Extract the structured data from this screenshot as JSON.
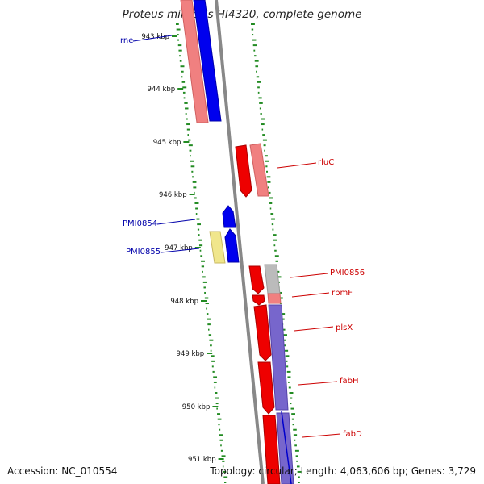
{
  "title": "Proteus mirabilis HI4320, complete genome",
  "footer": {
    "accession": "Accession: NC_010554",
    "topology": "Topology: circular; Length: 4,063,606 bp; Genes: 3,729"
  },
  "colors": {
    "forward_cds": "#ee0000",
    "forward_cds_light": "#f08080",
    "reverse_cds": "#0000ee",
    "reverse_cds_light": "#7766cc",
    "rna": "#f0e68c",
    "other": "#bbbbbb",
    "backbone": "#888888",
    "gc_ticks": "#228b22",
    "label_forward": "#cc0000",
    "label_reverse": "#0000aa"
  },
  "tick_labels": [
    "943 kbp",
    "944 kbp",
    "945 kbp",
    "946 kbp",
    "947 kbp",
    "948 kbp",
    "949 kbp",
    "950 kbp",
    "951 kbp"
  ],
  "gene_labels": [
    {
      "name": "rne",
      "strand": "reverse"
    },
    {
      "name": "PMI0854",
      "strand": "reverse"
    },
    {
      "name": "PMI0855",
      "strand": "reverse"
    },
    {
      "name": "rluC",
      "strand": "forward"
    },
    {
      "name": "PMI0856",
      "strand": "forward"
    },
    {
      "name": "rpmF",
      "strand": "forward"
    },
    {
      "name": "plsX",
      "strand": "forward"
    },
    {
      "name": "fabH",
      "strand": "forward"
    },
    {
      "name": "fabD",
      "strand": "forward"
    }
  ]
}
